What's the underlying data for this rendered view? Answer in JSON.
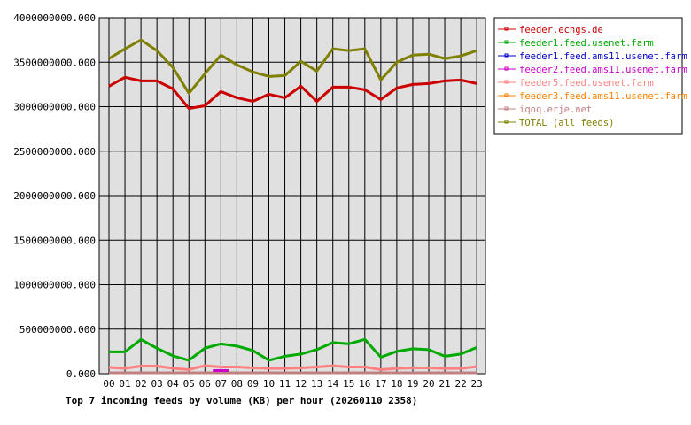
{
  "chart_data": {
    "type": "line",
    "title": "Top 7 incoming feeds by volume (KB) per hour (20260110 2358)",
    "xlabel": "",
    "ylabel": "",
    "categories": [
      "00",
      "01",
      "02",
      "03",
      "04",
      "05",
      "06",
      "07",
      "08",
      "09",
      "10",
      "11",
      "12",
      "13",
      "14",
      "15",
      "16",
      "17",
      "18",
      "19",
      "20",
      "21",
      "22",
      "23"
    ],
    "ylim": [
      0,
      4000000000
    ],
    "yticks": [
      "0.000",
      "500000000.000",
      "1000000000.000",
      "1500000000.000",
      "2000000000.000",
      "2500000000.000",
      "3000000000.000",
      "3500000000.000",
      "4000000000.000"
    ],
    "grid": true,
    "legend_position": "right",
    "series": [
      {
        "name": "feeder.ecngs.de",
        "color": "#cc0000",
        "values": [
          3230000000,
          3330000000,
          3290000000,
          3290000000,
          3200000000,
          2980000000,
          3010000000,
          3170000000,
          3100000000,
          3060000000,
          3140000000,
          3100000000,
          3230000000,
          3060000000,
          3220000000,
          3220000000,
          3190000000,
          3080000000,
          3210000000,
          3250000000,
          3260000000,
          3290000000,
          3300000000,
          3260000000
        ]
      },
      {
        "name": "feeder1.feed.usenet.farm",
        "color": "#00aa00",
        "values": [
          245000000,
          245000000,
          385000000,
          286000000,
          200000000,
          150000000,
          286000000,
          335000000,
          310000000,
          260000000,
          150000000,
          195000000,
          220000000,
          270000000,
          350000000,
          335000000,
          385000000,
          185000000,
          250000000,
          280000000,
          270000000,
          195000000,
          220000000,
          295000000
        ]
      },
      {
        "name": "feeder1.feed.ams11.usenet.farm",
        "color": "#0000cc",
        "values": [
          10000000,
          10000000,
          10000000,
          10000000,
          10000000,
          10000000,
          10000000,
          10000000,
          10000000,
          10000000,
          10000000,
          10000000,
          10000000,
          10000000,
          10000000,
          10000000,
          10000000,
          10000000,
          10000000,
          10000000,
          10000000,
          10000000,
          10000000,
          10000000
        ]
      },
      {
        "name": "feeder2.feed.ams11.usenet.farm",
        "color": "#cc00cc",
        "values": [
          null,
          null,
          null,
          null,
          null,
          null,
          null,
          35000000,
          null,
          null,
          null,
          null,
          null,
          null,
          null,
          null,
          null,
          null,
          null,
          null,
          null,
          null,
          null,
          null
        ]
      },
      {
        "name": "feeder5.feed.usenet.farm",
        "color": "#ff8080",
        "values": [
          70000000,
          60000000,
          85000000,
          85000000,
          60000000,
          45000000,
          90000000,
          75000000,
          75000000,
          65000000,
          58000000,
          58000000,
          65000000,
          75000000,
          88000000,
          75000000,
          75000000,
          45000000,
          58000000,
          65000000,
          65000000,
          58000000,
          58000000,
          78000000
        ]
      },
      {
        "name": "feeder3.feed.ams11.usenet.farm",
        "color": "#ff8000",
        "values": [
          10000000,
          10000000,
          10000000,
          10000000,
          10000000,
          10000000,
          10000000,
          10000000,
          10000000,
          10000000,
          10000000,
          10000000,
          10000000,
          10000000,
          10000000,
          10000000,
          10000000,
          10000000,
          10000000,
          10000000,
          10000000,
          10000000,
          10000000,
          10000000
        ]
      },
      {
        "name": "iqoq.erje.net",
        "color": "#c08080",
        "values": [
          10000000,
          10000000,
          10000000,
          10000000,
          10000000,
          10000000,
          10000000,
          10000000,
          10000000,
          10000000,
          10000000,
          10000000,
          10000000,
          10000000,
          10000000,
          10000000,
          10000000,
          10000000,
          10000000,
          10000000,
          10000000,
          10000000,
          10000000,
          10000000
        ]
      },
      {
        "name": "TOTAL (all feeds)",
        "color": "#808000",
        "values": [
          3540000000,
          3650000000,
          3750000000,
          3630000000,
          3440000000,
          3150000000,
          3370000000,
          3580000000,
          3470000000,
          3390000000,
          3340000000,
          3350000000,
          3510000000,
          3400000000,
          3650000000,
          3630000000,
          3650000000,
          3300000000,
          3500000000,
          3580000000,
          3590000000,
          3540000000,
          3570000000,
          3630000000
        ]
      }
    ]
  }
}
